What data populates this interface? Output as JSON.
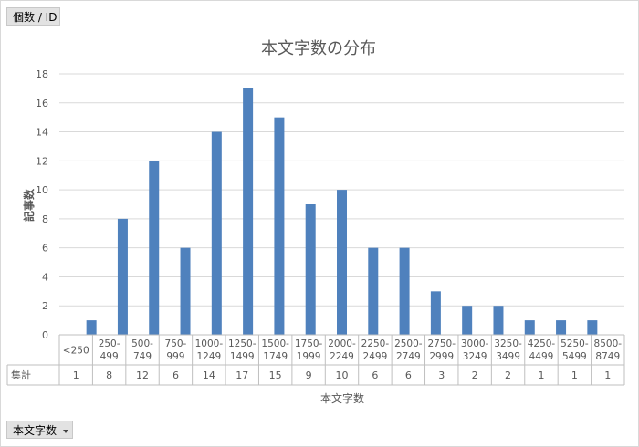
{
  "pivot": {
    "value_field_label": "個数 / ID",
    "axis_field_label": "本文字数"
  },
  "chart_data": {
    "type": "bar",
    "title": "本文字数の分布",
    "xlabel": "本文字数",
    "ylabel": "記事数",
    "ylim": [
      0,
      18
    ],
    "yticks": [
      0,
      2,
      4,
      6,
      8,
      10,
      12,
      14,
      16,
      18
    ],
    "categories": [
      [
        "<250"
      ],
      [
        "250-",
        "499"
      ],
      [
        "500-",
        "749"
      ],
      [
        "750-",
        "999"
      ],
      [
        "1000-",
        "1249"
      ],
      [
        "1250-",
        "1499"
      ],
      [
        "1500-",
        "1749"
      ],
      [
        "1750-",
        "1999"
      ],
      [
        "2000-",
        "2249"
      ],
      [
        "2250-",
        "2499"
      ],
      [
        "2500-",
        "2749"
      ],
      [
        "2750-",
        "2999"
      ],
      [
        "3000-",
        "3249"
      ],
      [
        "3250-",
        "3499"
      ],
      [
        "4250-",
        "4499"
      ],
      [
        "5250-",
        "5499"
      ],
      [
        "8500-",
        "8749"
      ]
    ],
    "series": [
      {
        "name": "集計",
        "values": [
          1,
          8,
          12,
          6,
          14,
          17,
          15,
          9,
          10,
          6,
          6,
          3,
          2,
          2,
          1,
          1,
          1
        ]
      }
    ],
    "gridlines": true,
    "data_table": true,
    "bar_color": "#4f81bd"
  }
}
